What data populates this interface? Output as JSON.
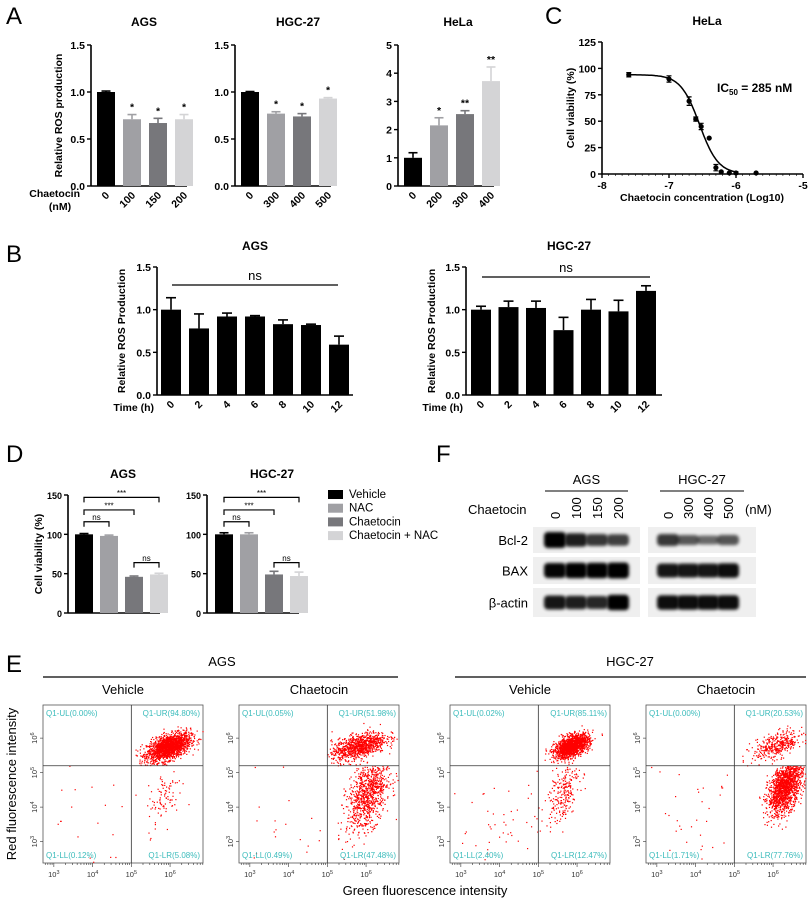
{
  "panel_letters": [
    "A",
    "B",
    "C",
    "D",
    "E",
    "F"
  ],
  "chart_data": [
    {
      "type": "bar",
      "title": "AGS",
      "ylabel": "Relative ROS production",
      "xlabel": "Chaetocin",
      "xunit": "(nM)",
      "categories": [
        "0",
        "100",
        "150",
        "200"
      ],
      "values": [
        1.0,
        0.71,
        0.67,
        0.71
      ],
      "errors": [
        0.01,
        0.05,
        0.05,
        0.05
      ],
      "significance": [
        "",
        "*",
        "*",
        "*"
      ],
      "ylim": [
        0,
        1.5
      ],
      "yticks": [
        "0.0",
        "0.5",
        "1.0",
        "1.5"
      ],
      "colors": [
        "#000000",
        "#a0a0a4",
        "#77777b",
        "#d4d4d6"
      ]
    },
    {
      "type": "bar",
      "title": "HGC-27",
      "categories": [
        "0",
        "300",
        "400",
        "500"
      ],
      "values": [
        1.0,
        0.77,
        0.74,
        0.93
      ],
      "errors": [
        0.005,
        0.02,
        0.03,
        0.01
      ],
      "significance": [
        "",
        "*",
        "*",
        "*"
      ],
      "ylim": [
        0,
        1.5
      ],
      "yticks": [
        "0.0",
        "0.5",
        "1.0",
        "1.5"
      ],
      "colors": [
        "#000000",
        "#a0a0a4",
        "#77777b",
        "#d4d4d6"
      ]
    },
    {
      "type": "bar",
      "title": "HeLa",
      "categories": [
        "0",
        "200",
        "300",
        "400"
      ],
      "values": [
        1.0,
        2.15,
        2.55,
        3.72
      ],
      "errors": [
        0.18,
        0.27,
        0.12,
        0.5
      ],
      "significance": [
        "",
        "*",
        "**",
        "**"
      ],
      "ylim": [
        0,
        5
      ],
      "yticks": [
        "0",
        "1",
        "2",
        "3",
        "4",
        "5"
      ],
      "colors": [
        "#000000",
        "#a0a0a4",
        "#77777b",
        "#d4d4d6"
      ]
    },
    {
      "type": "bar",
      "title": "AGS",
      "ylabel": "Relative ROS Production",
      "xlabel": "Time (h)",
      "categories": [
        "0",
        "2",
        "4",
        "6",
        "8",
        "10",
        "12"
      ],
      "values": [
        1.0,
        0.78,
        0.92,
        0.92,
        0.83,
        0.82,
        0.59
      ],
      "errors": [
        0.14,
        0.17,
        0.04,
        0.01,
        0.05,
        0.01,
        0.1
      ],
      "ylim": [
        0,
        1.5
      ],
      "yticks": [
        "0.0",
        "0.5",
        "1.0",
        "1.5"
      ],
      "colors": [
        "#000000"
      ],
      "annotation": "ns"
    },
    {
      "type": "bar",
      "title": "HGC-27",
      "ylabel": "Relative ROS Production",
      "xlabel": "Time (h)",
      "categories": [
        "0",
        "2",
        "4",
        "6",
        "8",
        "10",
        "12"
      ],
      "values": [
        1.0,
        1.03,
        1.02,
        0.76,
        1.0,
        0.98,
        1.22
      ],
      "errors": [
        0.04,
        0.07,
        0.08,
        0.15,
        0.12,
        0.13,
        0.06
      ],
      "ylim": [
        0,
        1.5
      ],
      "yticks": [
        "0.0",
        "0.5",
        "1.0",
        "1.5"
      ],
      "colors": [
        "#000000"
      ],
      "annotation": "ns"
    },
    {
      "type": "bar",
      "title": "AGS",
      "ylabel": "Cell viability (%)",
      "values": [
        100,
        98,
        46,
        49
      ],
      "errors": [
        1,
        1,
        1,
        1.5
      ],
      "ylim": [
        0,
        150
      ],
      "yticks": [
        "0",
        "50",
        "100",
        "150"
      ],
      "colors": [
        "#000000",
        "#a0a0a4",
        "#77777b",
        "#d4d4d6"
      ],
      "brackets": [
        {
          "from": 0,
          "to": 3,
          "label": "***",
          "level": 147
        },
        {
          "from": 0,
          "to": 2,
          "label": "***",
          "level": 131
        },
        {
          "from": 0,
          "to": 1,
          "label": "ns",
          "level": 116
        },
        {
          "from": 2,
          "to": 3,
          "label": "ns",
          "level": 64
        }
      ]
    },
    {
      "type": "bar",
      "title": "HGC-27",
      "values": [
        100,
        100,
        49,
        47
      ],
      "errors": [
        2,
        2,
        4,
        5
      ],
      "ylim": [
        0,
        150
      ],
      "yticks": [
        "0",
        "50",
        "100",
        "150"
      ],
      "colors": [
        "#000000",
        "#a0a0a4",
        "#77777b",
        "#d4d4d6"
      ],
      "brackets": [
        {
          "from": 0,
          "to": 3,
          "label": "***",
          "level": 147
        },
        {
          "from": 0,
          "to": 2,
          "label": "***",
          "level": 131
        },
        {
          "from": 0,
          "to": 1,
          "label": "ns",
          "level": 116
        },
        {
          "from": 2,
          "to": 3,
          "label": "ns",
          "level": 64
        }
      ]
    },
    {
      "type": "scatter",
      "title": "HeLa",
      "ylabel": "Cell viability (%)",
      "xlabel": "Chaetocin concentration (Log10)",
      "xlim": [
        -8,
        -5
      ],
      "ylim": [
        0,
        125
      ],
      "xticks": [
        "-8",
        "-7",
        "-6",
        "-5"
      ],
      "yticks": [
        "0",
        "25",
        "50",
        "75",
        "100",
        "125"
      ],
      "points": [
        {
          "x": -7.6,
          "y": 94,
          "err": 2
        },
        {
          "x": -7.0,
          "y": 90,
          "err": 3
        },
        {
          "x": -6.7,
          "y": 69,
          "err": 4
        },
        {
          "x": -6.6,
          "y": 52,
          "err": 2
        },
        {
          "x": -6.52,
          "y": 45,
          "err": 3
        },
        {
          "x": -6.4,
          "y": 34,
          "err": 0
        },
        {
          "x": -6.3,
          "y": 6,
          "err": 3
        },
        {
          "x": -6.22,
          "y": 2,
          "err": 0
        },
        {
          "x": -6.1,
          "y": 1,
          "err": 0
        },
        {
          "x": -6.0,
          "y": 1,
          "err": 1
        },
        {
          "x": -5.7,
          "y": 1,
          "err": 0
        }
      ],
      "fit": "sigmoidal dose-response",
      "ic50_nM": 285,
      "annotation": {
        "text": "IC",
        "sub": "50",
        "rest": " = 285 nM"
      }
    }
  ],
  "legend_d": {
    "items": [
      {
        "label": "Vehicle",
        "color": "#000000"
      },
      {
        "label": "NAC",
        "color": "#a0a0a4"
      },
      {
        "label": "Chaetocin",
        "color": "#77777b"
      },
      {
        "label": "Chaetocin + NAC",
        "color": "#d4d4d6"
      }
    ],
    "placement": "right"
  },
  "western_blot": {
    "treatment_label": "Chaetocin",
    "unit": "(nM)",
    "groups": [
      {
        "label": "AGS",
        "lanes": [
          "0",
          "100",
          "150",
          "200"
        ]
      },
      {
        "label": "HGC-27",
        "lanes": [
          "0",
          "300",
          "400",
          "500"
        ]
      }
    ],
    "rows": [
      {
        "label": "Bcl-2",
        "intensities": [
          [
            1.0,
            0.75,
            0.6,
            0.55
          ],
          [
            0.6,
            0.4,
            0.3,
            0.42
          ]
        ]
      },
      {
        "label": "BAX",
        "intensities": [
          [
            0.9,
            0.95,
            0.95,
            1.0
          ],
          [
            0.8,
            0.8,
            0.8,
            0.85
          ]
        ]
      },
      {
        "label": "β-actin",
        "intensities": [
          [
            0.8,
            0.75,
            0.7,
            0.95
          ],
          [
            0.85,
            0.85,
            0.85,
            0.85
          ]
        ]
      }
    ]
  },
  "flow_cytometry": {
    "xlabel": "Green fluorescence intensity",
    "ylabel": "Red fluorescence intensity",
    "tick_base": "10",
    "tick_exponents": [
      "3",
      "4",
      "5",
      "6"
    ],
    "dot_color": "#ff0000",
    "label_color": "#3cbcbc",
    "groups": [
      "AGS",
      "HGC-27"
    ],
    "plots": [
      {
        "condition": "Vehicle",
        "pct": {
          "UL": 0.0,
          "UR": 94.8,
          "LL": 0.12,
          "LR": 5.08
        },
        "labels": {
          "UL": "Q1-UL(0.00%)",
          "UR": "Q1-UR(94.80%)",
          "LL": "Q1-LL(0.12%)",
          "LR": "Q1-LR(5.08%)"
        }
      },
      {
        "condition": "Chaetocin",
        "pct": {
          "UL": 0.05,
          "UR": 51.98,
          "LL": 0.49,
          "LR": 47.48
        },
        "labels": {
          "UL": "Q1-UL(0.05%)",
          "UR": "Q1-UR(51.98%)",
          "LL": "Q1-LL(0.49%)",
          "LR": "Q1-LR(47.48%)"
        }
      },
      {
        "condition": "Vehicle",
        "pct": {
          "UL": 0.02,
          "UR": 85.11,
          "LL": 2.4,
          "LR": 12.47
        },
        "labels": {
          "UL": "Q1-UL(0.02%)",
          "UR": "Q1-UR(85.11%)",
          "LL": "Q1-LL(2.40%)",
          "LR": "Q1-LR(12.47%)"
        }
      },
      {
        "condition": "Chaetocin",
        "pct": {
          "UL": 0.0,
          "UR": 20.53,
          "LL": 1.71,
          "LR": 77.76
        },
        "labels": {
          "UL": "Q1-UL(0.00%)",
          "UR": "Q1-UR(20.53%)",
          "LL": "Q1-LL(1.71%)",
          "LR": "Q1-LR(77.76%)"
        }
      }
    ]
  }
}
